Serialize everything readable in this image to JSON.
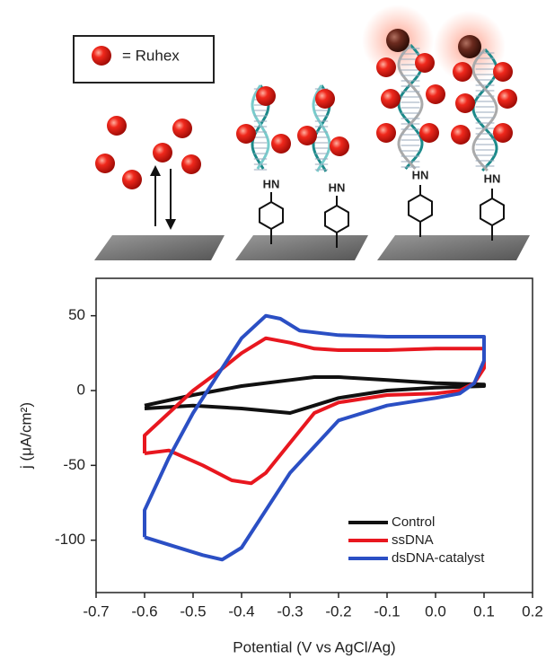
{
  "illustration": {
    "key_label": "= Ruhex",
    "amine_labels": [
      "HN",
      "HN",
      "HN",
      "HN"
    ]
  },
  "chart_data": {
    "type": "line",
    "x_label": "Potential (V vs AgCl/Ag)",
    "y_label": "j (μA/cm²)",
    "xlim": [
      -0.7,
      0.2
    ],
    "ylim": [
      -135,
      75
    ],
    "xticks": [
      -0.7,
      -0.6,
      -0.5,
      -0.4,
      -0.3,
      -0.2,
      -0.1,
      {
        "value": 0,
        "label": "0.0"
      },
      0.1,
      0.2
    ],
    "yticks": [
      50,
      0,
      -50,
      -100
    ],
    "legend": "lower right",
    "series": [
      {
        "name": "Control",
        "color": "#111111",
        "x": [
          -0.6,
          -0.5,
          -0.4,
          -0.3,
          -0.25,
          -0.2,
          -0.1,
          0,
          0.1,
          0.1,
          0,
          -0.1,
          -0.2,
          -0.25,
          -0.3,
          -0.4,
          -0.5,
          -0.6
        ],
        "values": [
          -12,
          -10,
          -12,
          -15,
          -10,
          -5,
          0,
          2,
          3,
          4,
          5,
          7,
          9,
          9,
          7,
          3,
          -3,
          -10
        ]
      },
      {
        "name": "ssDNA",
        "color": "#e8171f",
        "x": [
          -0.6,
          -0.6,
          -0.55,
          -0.5,
          -0.45,
          -0.4,
          -0.35,
          -0.3,
          -0.25,
          -0.2,
          -0.1,
          0,
          0.1,
          0.1,
          0.08,
          0.05,
          0,
          -0.1,
          -0.2,
          -0.25,
          -0.3,
          -0.35,
          -0.38,
          -0.42,
          -0.48,
          -0.55,
          -0.6
        ],
        "values": [
          -42,
          -30,
          -15,
          0,
          12,
          25,
          35,
          32,
          28,
          27,
          27,
          28,
          28,
          15,
          5,
          0,
          -2,
          -3,
          -8,
          -15,
          -35,
          -55,
          -62,
          -60,
          -50,
          -40,
          -42
        ]
      },
      {
        "name": "dsDNA-catalyst",
        "color": "#2b4fc4",
        "x": [
          -0.6,
          -0.6,
          -0.55,
          -0.5,
          -0.45,
          -0.4,
          -0.35,
          -0.32,
          -0.28,
          -0.2,
          -0.1,
          0,
          0.1,
          0.1,
          0.08,
          0.05,
          0,
          -0.1,
          -0.2,
          -0.3,
          -0.35,
          -0.4,
          -0.44,
          -0.48,
          -0.55,
          -0.6
        ],
        "values": [
          -98,
          -80,
          -45,
          -15,
          10,
          35,
          50,
          48,
          40,
          37,
          36,
          36,
          36,
          20,
          5,
          -2,
          -5,
          -10,
          -20,
          -55,
          -80,
          -105,
          -113,
          -110,
          -103,
          -98
        ]
      }
    ]
  }
}
